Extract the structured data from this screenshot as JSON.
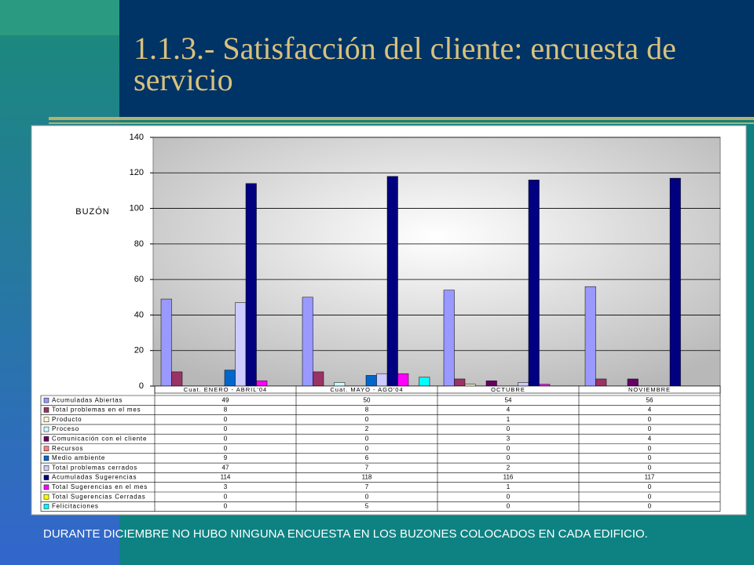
{
  "chart_data": {
    "type": "bar",
    "title": "1.1.3.- Satisfacción del cliente: encuesta de servicio",
    "ylabel": "BUZÓN",
    "note": "DURANTE DICIEMBRE NO HUBO NINGUNA ENCUESTA EN LOS BUZONES COLOCADOS EN CADA EDIFICIO.",
    "categories": [
      "Cuat. ENERO - ABRIL'04",
      "Cuat. MAYO - AGO'04",
      "OCTUBRE",
      "NOVIEMBRE"
    ],
    "ylim": [
      0,
      140
    ],
    "yticks": [
      0,
      20,
      40,
      60,
      80,
      100,
      120,
      140
    ],
    "grid": true,
    "series": [
      {
        "name": "Acumuladas Abiertas",
        "color": "#9999ff",
        "values": [
          49,
          50,
          54,
          56
        ]
      },
      {
        "name": "Total problemas en el mes",
        "color": "#993366",
        "values": [
          8,
          8,
          4,
          4
        ]
      },
      {
        "name": "Producto",
        "color": "#ffffcc",
        "values": [
          0,
          0,
          1,
          0
        ]
      },
      {
        "name": "Proceso",
        "color": "#ccffff",
        "values": [
          0,
          2,
          0,
          0
        ]
      },
      {
        "name": "Comunicación con el cliente",
        "color": "#660066",
        "values": [
          0,
          0,
          3,
          4
        ]
      },
      {
        "name": "Recursos",
        "color": "#ff8080",
        "values": [
          0,
          0,
          0,
          0
        ]
      },
      {
        "name": "Medio ambiente",
        "color": "#0066cc",
        "values": [
          9,
          6,
          0,
          0
        ]
      },
      {
        "name": "Total problemas cerrados",
        "color": "#ccccff",
        "values": [
          47,
          7,
          2,
          0
        ]
      },
      {
        "name": "Acumuladas Sugerencias",
        "color": "#000080",
        "values": [
          114,
          118,
          116,
          117
        ]
      },
      {
        "name": "Total Sugerencias en el mes",
        "color": "#ff00ff",
        "values": [
          3,
          7,
          1,
          0
        ]
      },
      {
        "name": "Total Sugerencias Cerradas",
        "color": "#ffff00",
        "values": [
          0,
          0,
          0,
          0
        ]
      },
      {
        "name": "Felicitaciones",
        "color": "#00ffff",
        "values": [
          0,
          5,
          0,
          0
        ]
      }
    ]
  }
}
